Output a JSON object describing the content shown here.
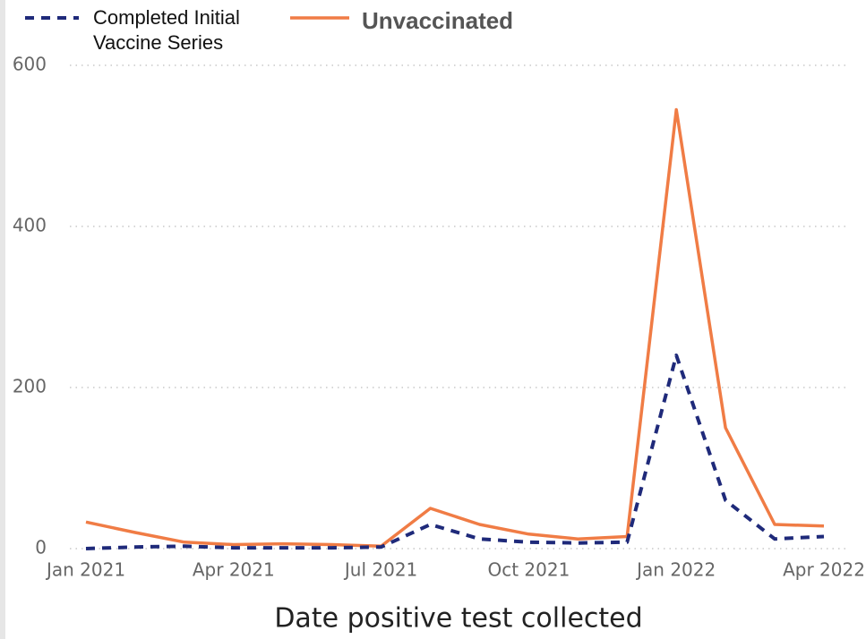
{
  "chart_data": {
    "type": "line",
    "x_label": "Date positive test collected",
    "x": [
      "Jan 2021",
      null,
      null,
      "Apr 2021",
      null,
      null,
      "Jul 2021",
      null,
      null,
      "Oct 2021",
      null,
      null,
      "Jan 2022",
      null,
      null,
      "Apr 2022"
    ],
    "series": [
      {
        "name": "Completed Initial Vaccine Series",
        "color": "#1f2a7a",
        "dash": true,
        "values": [
          0,
          2,
          3,
          1,
          1,
          1,
          2,
          30,
          12,
          8,
          7,
          8,
          240,
          60,
          12,
          15
        ]
      },
      {
        "name": "Unvaccinated",
        "color": "#f07c45",
        "dash": false,
        "values": [
          33,
          20,
          8,
          5,
          6,
          5,
          3,
          50,
          30,
          18,
          12,
          15,
          545,
          150,
          30,
          28
        ]
      }
    ],
    "ylim": [
      0,
      600
    ],
    "yticks": [
      0,
      200,
      400,
      600
    ],
    "grid": true
  }
}
